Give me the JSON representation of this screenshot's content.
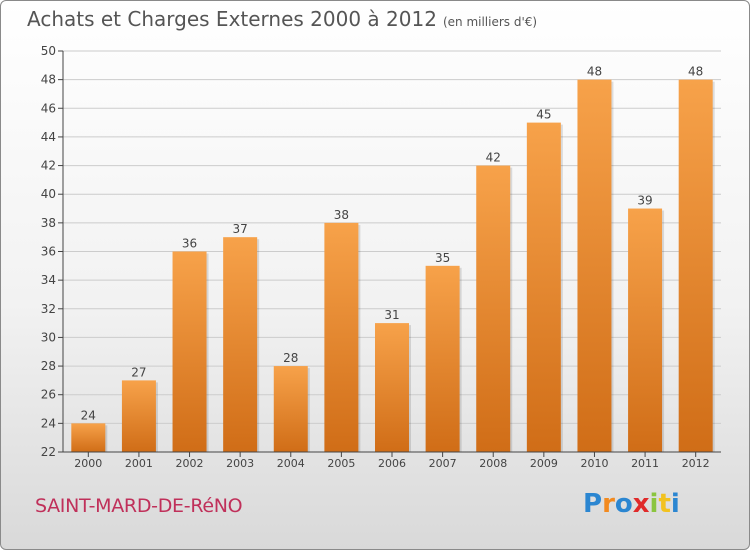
{
  "header": {
    "title": "Achats et Charges Externes 2000 à 2012",
    "unit": "(en milliers d'€)"
  },
  "footer": {
    "city": "SAINT-MARD-DE-RéNO",
    "brand": "Proxiti",
    "brand_letters": [
      "P",
      "r",
      "o",
      "x",
      "i",
      "t",
      "i"
    ]
  },
  "chart_data": {
    "type": "bar",
    "categories": [
      "2000",
      "2001",
      "2002",
      "2003",
      "2004",
      "2005",
      "2006",
      "2007",
      "2008",
      "2009",
      "2010",
      "2011",
      "2012"
    ],
    "values": [
      24,
      27,
      36,
      37,
      28,
      38,
      31,
      35,
      42,
      45,
      48,
      39,
      48
    ],
    "ylim": [
      22,
      50
    ],
    "yticks": [
      22,
      24,
      26,
      28,
      30,
      32,
      34,
      36,
      38,
      40,
      42,
      44,
      46,
      48,
      50
    ],
    "grid": true,
    "colors": {
      "bar_light": "#f7a24a",
      "bar_dark": "#d06d17",
      "grid": "#cccccc",
      "axis": "#444444"
    }
  }
}
